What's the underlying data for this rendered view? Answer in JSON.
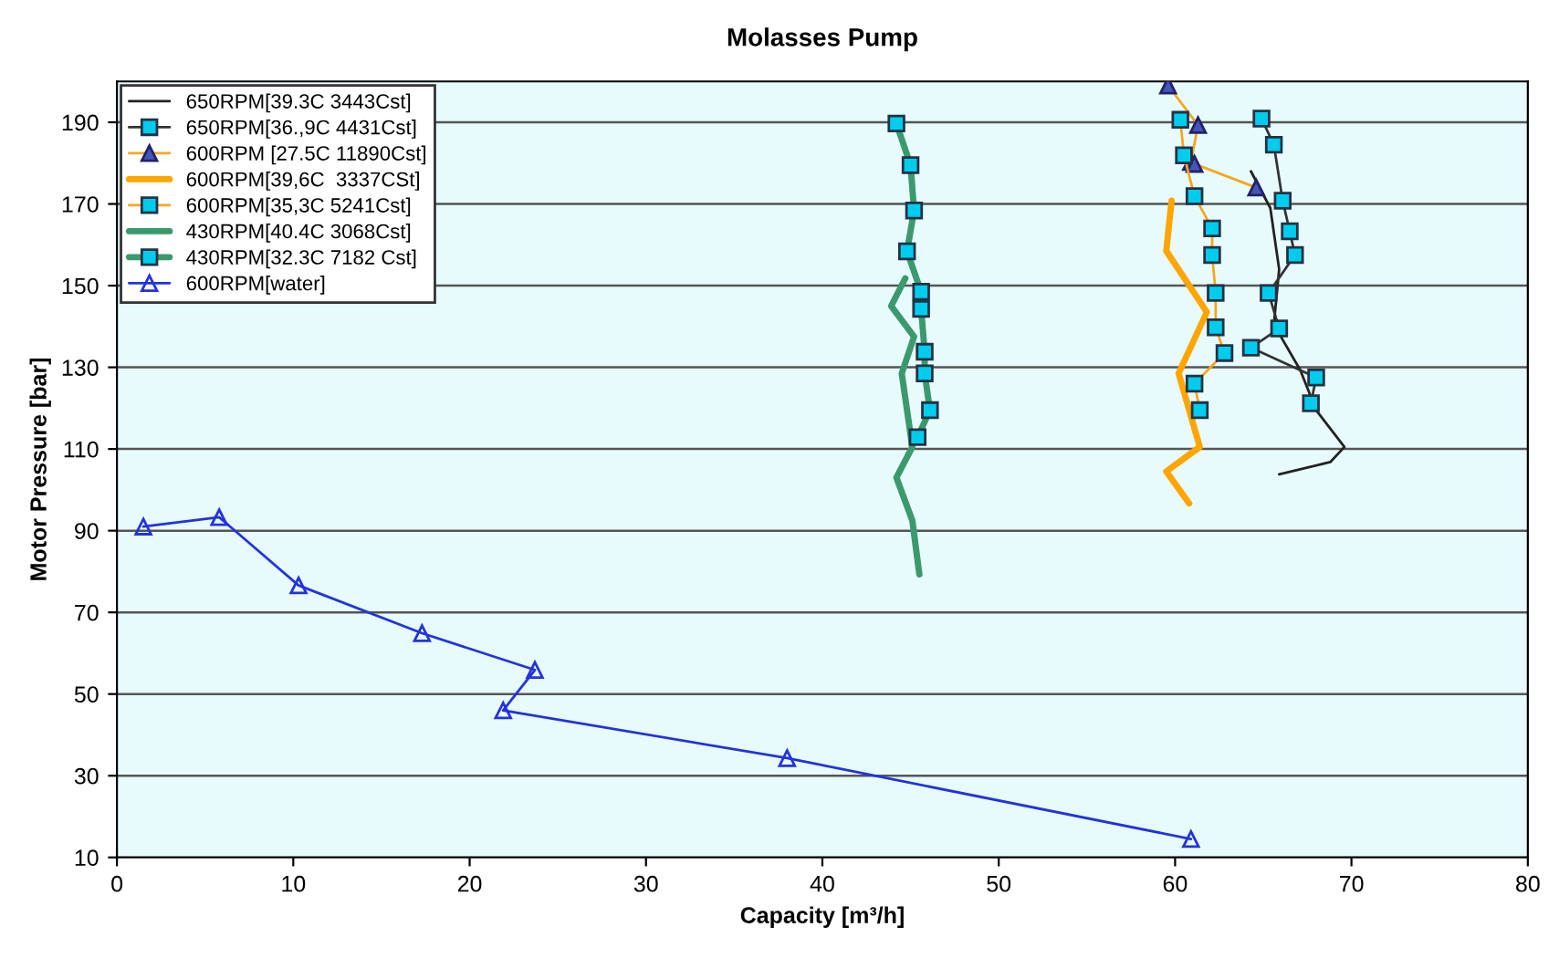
{
  "chart_data": {
    "type": "line",
    "title": "Molasses Pump",
    "xlabel": "Capacity [m³/h]",
    "ylabel": "Motor Pressure [bar]",
    "xlim": [
      0,
      80
    ],
    "xticks": [
      0,
      10,
      20,
      30,
      40,
      50,
      60,
      70,
      80
    ],
    "ylim": [
      10,
      200
    ],
    "yticks": [
      10,
      30,
      50,
      70,
      90,
      110,
      130,
      150,
      170,
      190
    ],
    "grid": "y",
    "legend": "top left",
    "line_style": "solid",
    "series": [
      {
        "name": "650RPM[39.3C 3443Cst]",
        "color": "#222222",
        "marker": "none",
        "x": [
          64.3,
          65.4,
          65.9,
          65.6,
          67.1,
          68.0,
          69.6,
          68.8,
          65.9
        ],
        "values": [
          178,
          169,
          154,
          140.5,
          129.3,
          119.5,
          110.5,
          106.8,
          103.8
        ]
      },
      {
        "name": "650RPM[36.,9C 4431Cst]",
        "color": "#333333",
        "marker": "square",
        "x": [
          64.9,
          65.6,
          66.1,
          66.5,
          66.8,
          65.3,
          65.9,
          64.3,
          68.0,
          67.7
        ],
        "values": [
          190.9,
          184.5,
          170.8,
          163.3,
          157.5,
          148.2,
          139.5,
          134.8,
          127.5,
          121.2
        ]
      },
      {
        "name": "600RPM [27.5C 11890Cst]",
        "color": "#f5a623",
        "marker": "triangle",
        "x": [
          59.6,
          61.3,
          60.9,
          61.1,
          64.6
        ],
        "values": [
          199,
          189.3,
          180.3,
          179.8,
          174
        ]
      },
      {
        "name": "600RPM[39,6C  3337CSt]",
        "color": "#ffa500",
        "marker": "none",
        "x": [
          59.8,
          59.5,
          61.8,
          60.2,
          61.4,
          59.5,
          60.8
        ],
        "values": [
          170.8,
          158.5,
          143.5,
          128.5,
          110.5,
          104.5,
          96.7
        ]
      },
      {
        "name": "600RPM[35,3C 5241Cst]",
        "color": "#f5a623",
        "marker": "square",
        "x": [
          60.3,
          60.5,
          61.1,
          62.1,
          62.1,
          62.3,
          62.3,
          62.8,
          61.1,
          61.4
        ],
        "values": [
          190.6,
          181.9,
          171.9,
          164,
          157.5,
          148.2,
          139.8,
          133.5,
          126,
          119.5
        ]
      },
      {
        "name": "430RPM[40.4C 3068Cst]",
        "color": "#3a9a6e",
        "marker": "none",
        "x": [
          44.7,
          43.9,
          45.2,
          44.5,
          44.8,
          45.1,
          44.2,
          45.1,
          45.5
        ],
        "values": [
          151.8,
          145,
          137.5,
          128.5,
          119.5,
          110.5,
          103,
          92.5,
          79.3
        ]
      },
      {
        "name": "430RPM[32.3C 7182 Cst]",
        "color": "#3a9a6e",
        "marker": "square",
        "x": [
          44.2,
          45.0,
          45.2,
          44.8,
          45.6,
          45.6,
          45.8,
          45.8,
          46.1,
          45.4
        ],
        "values": [
          189.7,
          179.5,
          168.4,
          158.4,
          148.5,
          144.3,
          133.8,
          128.5,
          119.5,
          112.9
        ]
      },
      {
        "name": "600RPM[water]",
        "color": "#2233dd",
        "marker": "triangle",
        "x": [
          1.5,
          5.8,
          10.3,
          17.3,
          23.7,
          21.9,
          38.0,
          60.9
        ],
        "values": [
          91,
          93.3,
          76.6,
          64.9,
          55.9,
          46,
          34.3,
          14.5
        ]
      }
    ]
  }
}
